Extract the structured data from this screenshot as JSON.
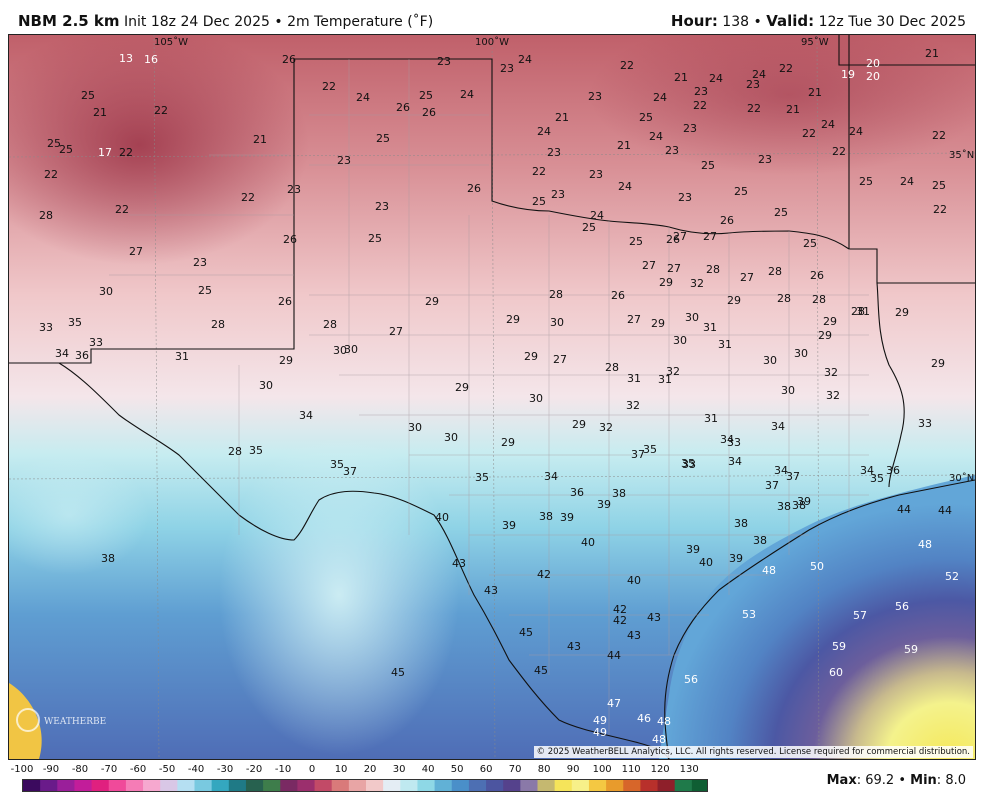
{
  "header": {
    "model": "NBM 2.5 km",
    "init_label": "Init 18z 24 Dec 2025",
    "bullet": "•",
    "field": "2m Temperature (˚F)",
    "hour_label": "Hour:",
    "hour_value": "138",
    "valid_label": "Valid:",
    "valid_value": "12z Tue 30 Dec 2025"
  },
  "map": {
    "lon_labels": [
      "105˚W",
      "100˚W",
      "95˚W"
    ],
    "lat_labels": [
      "35˚N",
      "30˚N"
    ],
    "copyright": "© 2025 WeatherBELL Analytics, LLC. All rights reserved. License required for commercial distribution.",
    "logo_text": "WEATHERBELL"
  },
  "stations": [
    {
      "v": "13"
    },
    {
      "v": "16"
    },
    {
      "v": "26"
    },
    {
      "v": "23"
    },
    {
      "v": "23"
    },
    {
      "v": "24"
    },
    {
      "v": "22"
    },
    {
      "v": "21"
    },
    {
      "v": "24"
    },
    {
      "v": "22"
    },
    {
      "v": "21"
    },
    {
      "v": "19"
    },
    {
      "v": "20"
    },
    {
      "v": "20"
    },
    {
      "v": "21"
    },
    {
      "v": "25"
    },
    {
      "v": "21"
    },
    {
      "v": "22"
    },
    {
      "v": "22"
    },
    {
      "v": "24"
    },
    {
      "v": "26"
    },
    {
      "v": "25"
    },
    {
      "v": "26"
    },
    {
      "v": "24"
    },
    {
      "v": "23"
    },
    {
      "v": "21"
    },
    {
      "v": "24"
    },
    {
      "v": "25"
    },
    {
      "v": "23"
    },
    {
      "v": "22"
    },
    {
      "v": "22"
    },
    {
      "v": "21"
    },
    {
      "v": "23"
    },
    {
      "v": "24"
    },
    {
      "v": "25"
    },
    {
      "v": "25"
    },
    {
      "v": "17"
    },
    {
      "v": "22"
    },
    {
      "v": "21"
    },
    {
      "v": "25"
    },
    {
      "v": "24"
    },
    {
      "v": "23"
    },
    {
      "v": "21"
    },
    {
      "v": "24"
    },
    {
      "v": "23"
    },
    {
      "v": "23"
    },
    {
      "v": "22"
    },
    {
      "v": "24"
    },
    {
      "v": "22"
    },
    {
      "v": "22"
    },
    {
      "v": "23"
    },
    {
      "v": "22"
    },
    {
      "v": "23"
    },
    {
      "v": "25"
    },
    {
      "v": "23"
    },
    {
      "v": "22"
    },
    {
      "v": "24"
    },
    {
      "v": "25"
    },
    {
      "v": "22"
    },
    {
      "v": "23"
    },
    {
      "v": "26"
    },
    {
      "v": "25"
    },
    {
      "v": "23"
    },
    {
      "v": "24"
    },
    {
      "v": "23"
    },
    {
      "v": "25"
    },
    {
      "v": "22"
    },
    {
      "v": "28"
    },
    {
      "v": "22"
    },
    {
      "v": "23"
    },
    {
      "v": "24"
    },
    {
      "v": "25"
    },
    {
      "v": "26"
    },
    {
      "v": "24"
    },
    {
      "v": "27"
    },
    {
      "v": "25"
    },
    {
      "v": "25"
    },
    {
      "v": "25"
    },
    {
      "v": "27"
    },
    {
      "v": "26"
    },
    {
      "v": "26"
    },
    {
      "v": "25"
    },
    {
      "v": "27"
    },
    {
      "v": "23"
    },
    {
      "v": "27"
    },
    {
      "v": "27"
    },
    {
      "v": "28"
    },
    {
      "v": "27"
    },
    {
      "v": "28"
    },
    {
      "v": "26"
    },
    {
      "v": "25"
    },
    {
      "v": "30"
    },
    {
      "v": "25"
    },
    {
      "v": "29"
    },
    {
      "v": "32"
    },
    {
      "v": "29"
    },
    {
      "v": "28"
    },
    {
      "v": "28"
    },
    {
      "v": "26"
    },
    {
      "v": "29"
    },
    {
      "v": "28"
    },
    {
      "v": "26"
    },
    {
      "v": "29"
    },
    {
      "v": "31"
    },
    {
      "v": "27"
    },
    {
      "v": "28"
    },
    {
      "v": "30"
    },
    {
      "v": "33"
    },
    {
      "v": "35"
    },
    {
      "v": "28"
    },
    {
      "v": "28"
    },
    {
      "v": "27"
    },
    {
      "v": "29"
    },
    {
      "v": "30"
    },
    {
      "v": "31"
    },
    {
      "v": "29"
    },
    {
      "v": "29"
    },
    {
      "v": "33"
    },
    {
      "v": "30"
    },
    {
      "v": "31"
    },
    {
      "v": "29"
    },
    {
      "v": "34"
    },
    {
      "v": "36"
    },
    {
      "v": "31"
    },
    {
      "v": "29"
    },
    {
      "v": "30"
    },
    {
      "v": "30"
    },
    {
      "v": "27"
    },
    {
      "v": "29"
    },
    {
      "v": "30"
    },
    {
      "v": "30"
    },
    {
      "v": "28"
    },
    {
      "v": "32"
    },
    {
      "v": "31"
    },
    {
      "v": "29"
    },
    {
      "v": "30"
    },
    {
      "v": "29"
    },
    {
      "v": "30"
    },
    {
      "v": "31"
    },
    {
      "v": "30"
    },
    {
      "v": "32"
    },
    {
      "v": "34"
    },
    {
      "v": "30"
    },
    {
      "v": "30"
    },
    {
      "v": "29"
    },
    {
      "v": "29"
    },
    {
      "v": "32"
    },
    {
      "v": "32"
    },
    {
      "v": "34"
    },
    {
      "v": "31"
    },
    {
      "v": "32"
    },
    {
      "v": "28"
    },
    {
      "v": "35"
    },
    {
      "v": "33"
    },
    {
      "v": "37"
    },
    {
      "v": "35"
    },
    {
      "v": "34"
    },
    {
      "v": "33"
    },
    {
      "v": "33"
    },
    {
      "v": "35"
    },
    {
      "v": "37"
    },
    {
      "v": "35"
    },
    {
      "v": "34"
    },
    {
      "v": "35"
    },
    {
      "v": "34"
    },
    {
      "v": "37"
    },
    {
      "v": "34"
    },
    {
      "v": "34"
    },
    {
      "v": "36"
    },
    {
      "v": "35"
    },
    {
      "v": "36"
    },
    {
      "v": "38"
    },
    {
      "v": "37"
    },
    {
      "v": "38"
    },
    {
      "v": "38"
    },
    {
      "v": "39"
    },
    {
      "v": "40"
    },
    {
      "v": "39"
    },
    {
      "v": "38"
    },
    {
      "v": "39"
    },
    {
      "v": "39"
    },
    {
      "v": "38"
    },
    {
      "v": "44"
    },
    {
      "v": "44"
    },
    {
      "v": "38"
    },
    {
      "v": "40"
    },
    {
      "v": "39"
    },
    {
      "v": "38"
    },
    {
      "v": "48"
    },
    {
      "v": "43"
    },
    {
      "v": "42"
    },
    {
      "v": "40"
    },
    {
      "v": "40"
    },
    {
      "v": "39"
    },
    {
      "v": "48"
    },
    {
      "v": "50"
    },
    {
      "v": "52"
    },
    {
      "v": "43"
    },
    {
      "v": "42"
    },
    {
      "v": "42"
    },
    {
      "v": "43"
    },
    {
      "v": "53"
    },
    {
      "v": "56"
    },
    {
      "v": "57"
    },
    {
      "v": "45"
    },
    {
      "v": "43"
    },
    {
      "v": "43"
    },
    {
      "v": "44"
    },
    {
      "v": "45"
    },
    {
      "v": "45"
    },
    {
      "v": "59"
    },
    {
      "v": "59"
    },
    {
      "v": "56"
    },
    {
      "v": "60"
    },
    {
      "v": "47"
    },
    {
      "v": "46"
    },
    {
      "v": "49"
    },
    {
      "v": "49"
    },
    {
      "v": "48"
    },
    {
      "v": "48"
    }
  ],
  "legend": {
    "ticks": [
      "-100",
      "-90",
      "-80",
      "-70",
      "-60",
      "-50",
      "-40",
      "-30",
      "-20",
      "-10",
      "0",
      "10",
      "20",
      "30",
      "40",
      "50",
      "60",
      "70",
      "80",
      "90",
      "100",
      "110",
      "120",
      "130"
    ],
    "colors": [
      "#3b0a5e",
      "#6a1b8a",
      "#9a1f9a",
      "#c21d9a",
      "#e0207f",
      "#f04a9a",
      "#f57cb6",
      "#f6a8cf",
      "#d9c7e6",
      "#b5dff2",
      "#79c9e0",
      "#34a7bf",
      "#1f7a86",
      "#27614f",
      "#3e7d4b",
      "#7a2a63",
      "#9b2f6d",
      "#c24a67",
      "#d97a7a",
      "#e8a5a5",
      "#f2c9c9",
      "#e4edf4",
      "#bfe9f0",
      "#8ed8e6",
      "#61b1d6",
      "#4a8fc9",
      "#4d6fb3",
      "#4c55a0",
      "#55428c",
      "#8a79a8",
      "#c5b870",
      "#f5e45a",
      "#f7f089",
      "#f4c842",
      "#e89b2c",
      "#d7662a",
      "#b8302b",
      "#8e1f2a",
      "#1f7a4a",
      "#0f5e33"
    ]
  },
  "maxmin": {
    "max_label": "Max",
    "max_value": "69.2",
    "min_label": "Min",
    "min_value": "8.0"
  }
}
